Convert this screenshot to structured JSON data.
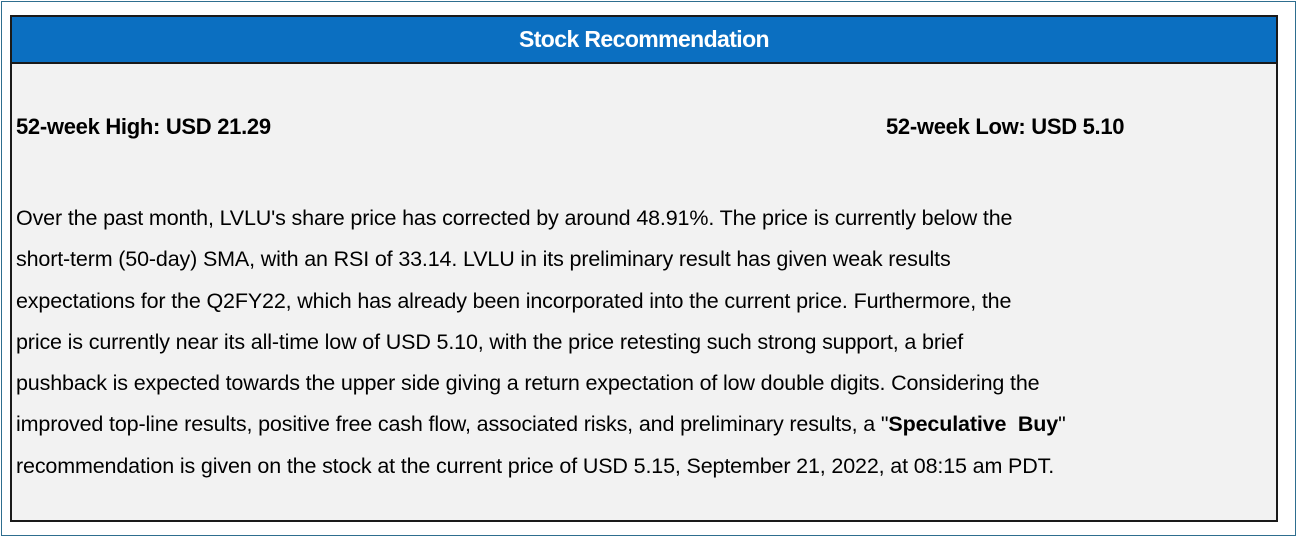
{
  "header": {
    "title": "Stock Recommendation"
  },
  "stats": {
    "high_label": "52-week High: USD 21.29",
    "low_label": "52-week Low: USD 5.10"
  },
  "body": {
    "line1": "Over the past month, LVLU's share price has corrected by around 48.91%. The price is currently below the",
    "line2": "short-term (50-day) SMA, with an RSI of 33.14. LVLU in its preliminary result has given weak results",
    "line3": "expectations for the Q2FY22, which has already been incorporated into the current price. Furthermore, the",
    "line4": "price is currently near its all-time low of USD 5.10, with the price retesting such strong support, a brief",
    "line5": "pushback is expected towards the upper side giving a return expectation of low double digits. Considering the",
    "line6_prefix": "improved top-line results, positive free cash flow, associated risks, and preliminary results, a \"",
    "recommendation": "Speculative  Buy",
    "line6_suffix": "\"",
    "line7": "recommendation is given on the stock at the current price of USD 5.15, September 21, 2022, at 08:15 am PDT."
  }
}
